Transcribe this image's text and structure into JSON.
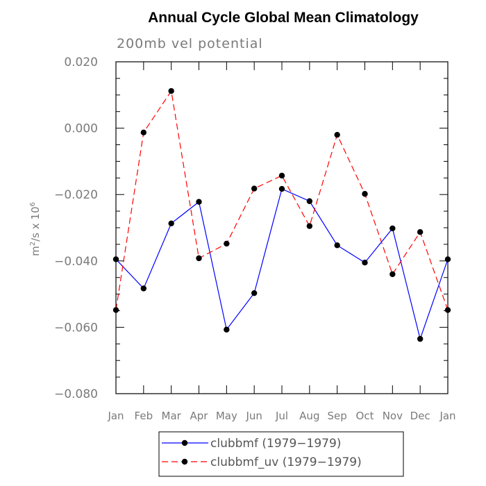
{
  "chart_data": {
    "type": "line",
    "title": "Annual Cycle Global Mean Climatology",
    "subtitle": "200mb vel potential",
    "ylabel_base": "m",
    "ylabel_sup1": "2",
    "ylabel_mid": "/s x 10",
    "ylabel_sup2": "6",
    "ylim": [
      -0.08,
      0.02
    ],
    "yticks": [
      0.02,
      0.0,
      -0.02,
      -0.04,
      -0.06,
      -0.08
    ],
    "ytick_labels": [
      "0.020",
      "0.000",
      "−0.020",
      "−0.040",
      "−0.060",
      "−0.080"
    ],
    "categories": [
      "Jan",
      "Feb",
      "Mar",
      "Apr",
      "May",
      "Jun",
      "Jul",
      "Aug",
      "Sep",
      "Oct",
      "Nov",
      "Dec",
      "Jan"
    ],
    "series": [
      {
        "name": "clubbmf (1979−1979)",
        "color": "#0000ff",
        "dash": "solid",
        "marker_color": "#000000",
        "values": [
          -0.0395,
          -0.0483,
          -0.0287,
          -0.0222,
          -0.0607,
          -0.0497,
          -0.0183,
          -0.022,
          -0.0353,
          -0.0405,
          -0.0302,
          -0.0635,
          -0.0395
        ]
      },
      {
        "name": "clubbmf_uv (1979−1979)",
        "color": "#ff0000",
        "dash": "dashed",
        "marker_color": "#000000",
        "values": [
          -0.0548,
          -0.0013,
          0.0112,
          -0.0392,
          -0.0348,
          -0.0182,
          -0.0143,
          -0.0295,
          -0.002,
          -0.0198,
          -0.044,
          -0.0313,
          -0.0548
        ]
      }
    ],
    "legend_position": "bottom-center",
    "grid": false
  }
}
